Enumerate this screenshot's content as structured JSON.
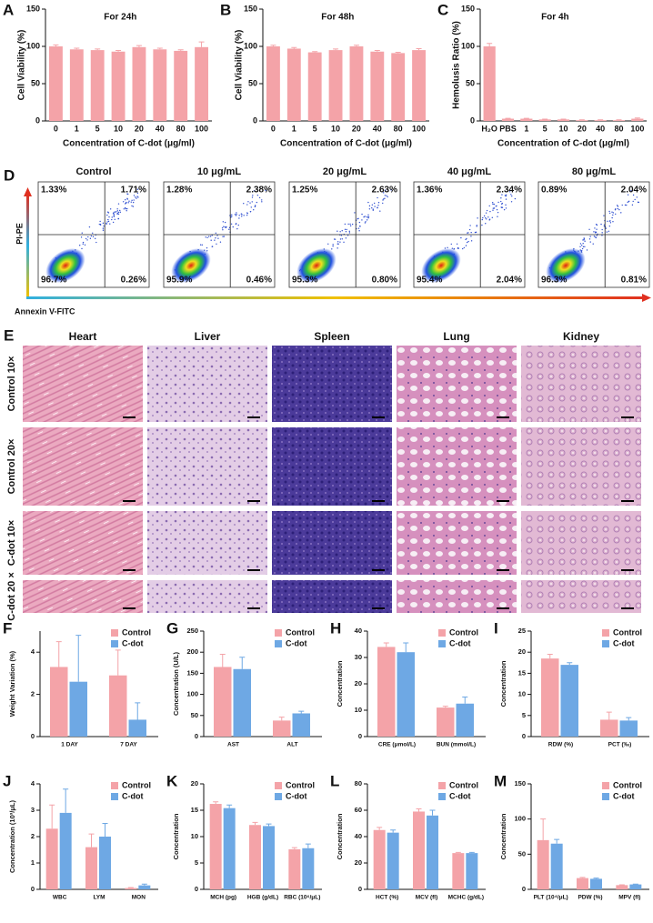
{
  "chart_data": [
    {
      "type": "bar",
      "panel": "A",
      "title": "For 24h",
      "y_label": "Cell Viability (%)",
      "x_label": "Concentration of C-dot (μg/ml)",
      "categories": [
        "0",
        "1",
        "5",
        "10",
        "20",
        "40",
        "80",
        "100"
      ],
      "values": [
        100,
        96,
        95,
        93,
        99,
        96,
        94,
        99
      ],
      "errors": [
        2,
        1.5,
        1.5,
        1.5,
        2,
        1.5,
        1.5,
        7
      ],
      "color": "#f4a3a8",
      "ylim": [
        0,
        150
      ],
      "yticks": [
        0,
        50,
        100,
        150
      ]
    },
    {
      "type": "bar",
      "panel": "B",
      "title": "For 48h",
      "y_label": "Cell Viability (%)",
      "x_label": "Concentration of C-dot (μg/ml)",
      "categories": [
        "0",
        "1",
        "5",
        "10",
        "20",
        "40",
        "80",
        "100"
      ],
      "values": [
        100,
        97,
        92,
        95,
        100,
        93,
        91,
        95
      ],
      "errors": [
        1.5,
        1.5,
        1,
        1.5,
        1.5,
        1.5,
        1,
        2
      ],
      "color": "#f4a3a8",
      "ylim": [
        0,
        150
      ],
      "yticks": [
        0,
        50,
        100,
        150
      ]
    },
    {
      "type": "bar",
      "panel": "C",
      "title": "For 4h",
      "y_label": "Hemolusis Ratio (%)",
      "x_label": "Concentration of C-dot (μg/ml)",
      "categories": [
        "H₂O",
        "PBS",
        "1",
        "5",
        "10",
        "20",
        "40",
        "80",
        "100"
      ],
      "values": [
        100,
        3,
        3,
        2,
        2,
        1,
        1,
        1,
        3
      ],
      "errors": [
        4,
        0.5,
        0.5,
        0.5,
        0.5,
        0.5,
        0.5,
        0.5,
        1
      ],
      "color": "#f4a3a8",
      "ylim": [
        0,
        150
      ],
      "yticks": [
        0,
        50,
        100,
        150
      ]
    },
    {
      "type": "bar",
      "panel": "F",
      "y_label": "Weight Variation (%)",
      "categories": [
        "1 DAY",
        "7 DAY"
      ],
      "ylim": [
        0,
        5
      ],
      "yticks": [
        0,
        2,
        4
      ],
      "series": [
        {
          "name": "Control",
          "color": "#f4a3a8",
          "values": [
            3.3,
            2.9
          ],
          "errors": [
            1.2,
            1.2
          ]
        },
        {
          "name": "C-dot",
          "color": "#6ea8e4",
          "values": [
            2.6,
            0.8
          ],
          "errors": [
            2.2,
            0.8
          ]
        }
      ]
    },
    {
      "type": "bar",
      "panel": "G",
      "y_label": "Concentration (U/L)",
      "categories": [
        "AST",
        "ALT"
      ],
      "ylim": [
        0,
        250
      ],
      "yticks": [
        0,
        50,
        100,
        150,
        200,
        250
      ],
      "series": [
        {
          "name": "Control",
          "color": "#f4a3a8",
          "values": [
            165,
            38
          ],
          "errors": [
            30,
            8
          ]
        },
        {
          "name": "C-dot",
          "color": "#6ea8e4",
          "values": [
            160,
            55
          ],
          "errors": [
            28,
            5
          ]
        }
      ]
    },
    {
      "type": "bar",
      "panel": "H",
      "y_label": "Concentration",
      "categories": [
        "CRE (μmol/L)",
        "BUN (mmol/L)"
      ],
      "ylim": [
        0,
        40
      ],
      "yticks": [
        0,
        10,
        20,
        30,
        40
      ],
      "series": [
        {
          "name": "Control",
          "color": "#f4a3a8",
          "values": [
            34,
            11
          ],
          "errors": [
            1.5,
            0.5
          ]
        },
        {
          "name": "C-dot",
          "color": "#6ea8e4",
          "values": [
            32,
            12.5
          ],
          "errors": [
            3.5,
            2.5
          ]
        }
      ]
    },
    {
      "type": "bar",
      "panel": "I",
      "y_label": "Concentration",
      "categories": [
        "RDW (%)",
        "PCT (‰)"
      ],
      "ylim": [
        0,
        25
      ],
      "yticks": [
        0,
        5,
        10,
        15,
        20,
        25
      ],
      "series": [
        {
          "name": "Control",
          "color": "#f4a3a8",
          "values": [
            18.5,
            4
          ],
          "errors": [
            1,
            1.8
          ]
        },
        {
          "name": "C-dot",
          "color": "#6ea8e4",
          "values": [
            17,
            3.8
          ],
          "errors": [
            0.5,
            0.7
          ]
        }
      ]
    },
    {
      "type": "bar",
      "panel": "J",
      "y_label": "Concentration (10³/μL)",
      "categories": [
        "WBC",
        "LYM",
        "MON"
      ],
      "ylim": [
        0,
        4
      ],
      "yticks": [
        0,
        1,
        2,
        3,
        4
      ],
      "series": [
        {
          "name": "Control",
          "color": "#f4a3a8",
          "values": [
            2.3,
            1.6,
            0.05
          ],
          "errors": [
            0.9,
            0.5,
            0.02
          ]
        },
        {
          "name": "C-dot",
          "color": "#6ea8e4",
          "values": [
            2.9,
            2.0,
            0.15
          ],
          "errors": [
            0.9,
            0.5,
            0.05
          ]
        }
      ]
    },
    {
      "type": "bar",
      "panel": "K",
      "y_label": "Concentration",
      "categories": [
        "MCH (pg)",
        "HGB (g/dL)",
        "RBC (10⁶/μL)"
      ],
      "ylim": [
        0,
        20
      ],
      "yticks": [
        0,
        5,
        10,
        15,
        20
      ],
      "series": [
        {
          "name": "Control",
          "color": "#f4a3a8",
          "values": [
            16.2,
            12.2,
            7.6
          ],
          "errors": [
            0.4,
            0.5,
            0.3
          ]
        },
        {
          "name": "C-dot",
          "color": "#6ea8e4",
          "values": [
            15.4,
            12.0,
            7.8
          ],
          "errors": [
            0.6,
            0.4,
            0.8
          ]
        }
      ]
    },
    {
      "type": "bar",
      "panel": "L",
      "y_label": "Concentration",
      "categories": [
        "HCT (%)",
        "MCV (fl)",
        "MCHC (g/dL)"
      ],
      "ylim": [
        0,
        80
      ],
      "yticks": [
        0,
        20,
        40,
        60,
        80
      ],
      "series": [
        {
          "name": "Control",
          "color": "#f4a3a8",
          "values": [
            45,
            59,
            27.5
          ],
          "errors": [
            2,
            2,
            0.5
          ]
        },
        {
          "name": "C-dot",
          "color": "#6ea8e4",
          "values": [
            43,
            56,
            27.5
          ],
          "errors": [
            2,
            4,
            0.5
          ]
        }
      ]
    },
    {
      "type": "bar",
      "panel": "M",
      "y_label": "Concentration",
      "categories": [
        "PLT (10⁴/μL)",
        "PDW (%)",
        "MPV (fl)"
      ],
      "ylim": [
        0,
        150
      ],
      "yticks": [
        0,
        50,
        100,
        150
      ],
      "series": [
        {
          "name": "Control",
          "color": "#f4a3a8",
          "values": [
            70,
            16,
            6
          ],
          "errors": [
            30,
            1,
            0.5
          ]
        },
        {
          "name": "C-dot",
          "color": "#6ea8e4",
          "values": [
            65,
            15,
            7
          ],
          "errors": [
            6,
            1,
            0.5
          ]
        }
      ]
    }
  ],
  "flow": {
    "panel": "D",
    "y_label": "PI-PE",
    "x_label": "Annexin V-FITC",
    "plots": [
      {
        "title": "Control",
        "quadrants": [
          "1.33%",
          "1.71%",
          "96.7%",
          "0.26%"
        ]
      },
      {
        "title": "10 μg/mL",
        "quadrants": [
          "1.28%",
          "2.38%",
          "95.9%",
          "0.46%"
        ]
      },
      {
        "title": "20 μg/mL",
        "quadrants": [
          "1.25%",
          "2.63%",
          "95.3%",
          "0.80%"
        ]
      },
      {
        "title": "40 μg/mL",
        "quadrants": [
          "1.36%",
          "2.34%",
          "95.4%",
          "2.04%"
        ]
      },
      {
        "title": "80 μg/mL",
        "quadrants": [
          "0.89%",
          "2.04%",
          "96.3%",
          "0.81%"
        ]
      }
    ]
  },
  "histology": {
    "panel": "E",
    "columns": [
      "Heart",
      "Liver",
      "Spleen",
      "Lung",
      "Kidney"
    ],
    "rows": [
      "Control 10×",
      "Control 20×",
      "C-dot 10×",
      "C-dot 20 ×"
    ]
  }
}
